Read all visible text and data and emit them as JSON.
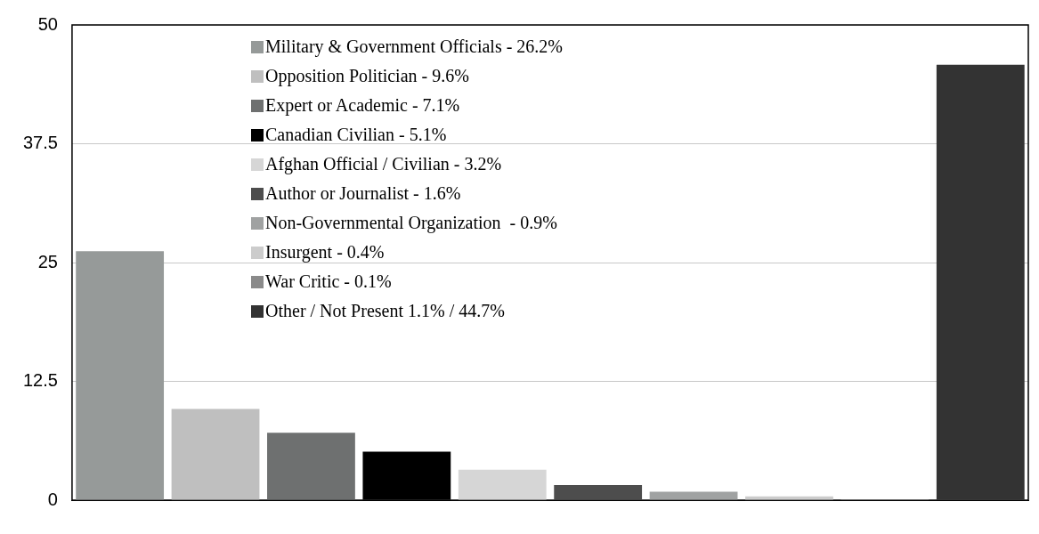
{
  "chart_data": {
    "type": "bar",
    "categories": [
      null,
      null,
      null,
      null,
      null,
      null,
      null,
      null,
      null,
      null
    ],
    "series": [
      {
        "name": "Military & Government Officials - 26.2%",
        "color": "#969a99",
        "values": [
          26.2,
          null,
          null,
          null,
          null,
          null,
          null,
          null,
          null,
          null
        ]
      },
      {
        "name": "Opposition Politician - 9.6%",
        "color": "#bfbfbf",
        "values": [
          null,
          9.6,
          null,
          null,
          null,
          null,
          null,
          null,
          null,
          null
        ]
      },
      {
        "name": "Expert or Academic - 7.1%",
        "color": "#6e7070",
        "values": [
          null,
          null,
          7.1,
          null,
          null,
          null,
          null,
          null,
          null,
          null
        ]
      },
      {
        "name": "Canadian Civilian - 5.1%",
        "color": "#000000",
        "values": [
          null,
          null,
          null,
          5.1,
          null,
          null,
          null,
          null,
          null,
          null
        ]
      },
      {
        "name": "Afghan Official / Civilian - 3.2%",
        "color": "#d6d6d6",
        "values": [
          null,
          null,
          null,
          null,
          3.2,
          null,
          null,
          null,
          null,
          null
        ]
      },
      {
        "name": "Author or Journalist - 1.6%",
        "color": "#4d4d4d",
        "values": [
          null,
          null,
          null,
          null,
          null,
          1.6,
          null,
          null,
          null,
          null
        ]
      },
      {
        "name": "Non-Governmental Organization  - 0.9%",
        "color": "#a0a2a2",
        "values": [
          null,
          null,
          null,
          null,
          null,
          null,
          0.9,
          null,
          null,
          null
        ]
      },
      {
        "name": "Insurgent - 0.4%",
        "color": "#cccccc",
        "values": [
          null,
          null,
          null,
          null,
          null,
          null,
          null,
          0.4,
          null,
          null
        ]
      },
      {
        "name": "War Critic - 0.1%",
        "color": "#8a8a8a",
        "values": [
          null,
          null,
          null,
          null,
          null,
          null,
          null,
          null,
          0.1,
          null
        ]
      },
      {
        "name": "Other / Not Present 1.1% / 44.7%",
        "color": "#333333",
        "values": [
          null,
          null,
          null,
          null,
          null,
          null,
          null,
          null,
          null,
          45.8
        ]
      }
    ],
    "ylim": [
      0,
      50
    ],
    "yticks": [
      0,
      12.5,
      25,
      37.5,
      50
    ],
    "grid": "y",
    "legend": "top"
  }
}
